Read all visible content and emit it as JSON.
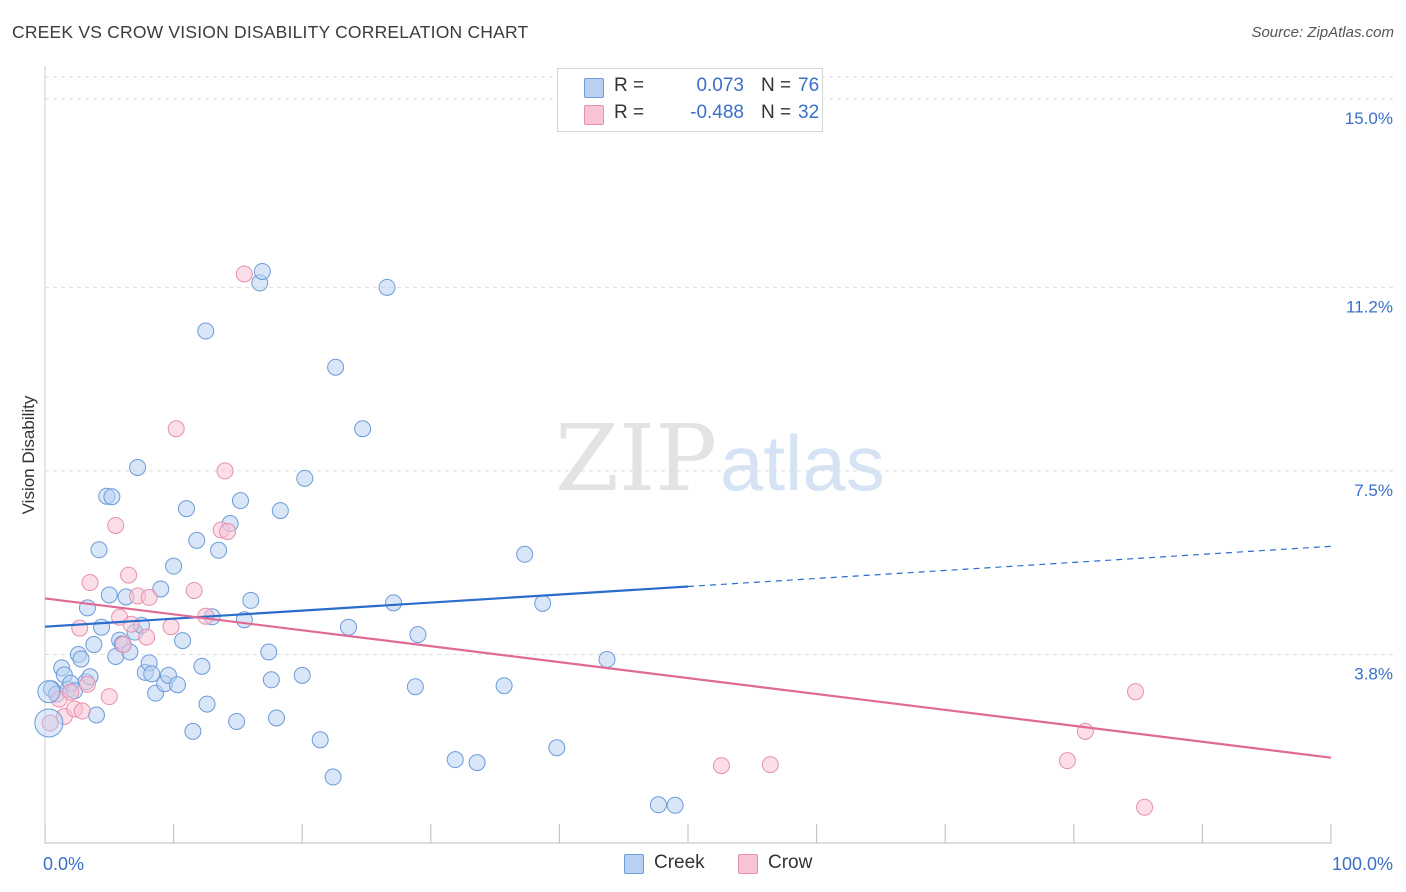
{
  "title": "CREEK VS CROW VISION DISABILITY CORRELATION CHART",
  "source": "Source: ZipAtlas.com",
  "watermark": {
    "zip": "ZIP",
    "atlas": "atlas"
  },
  "colors": {
    "creek_fill": "#b8d1f3",
    "creek_stroke": "#6c9bd8",
    "creek_line": "#2a6ccc",
    "crow_fill": "#f8c3d4",
    "crow_stroke": "#e890ad",
    "crow_line": "#e06a94",
    "axis_label": "#3a6fc9",
    "grid": "#dddddd"
  },
  "legend": {
    "rows": [
      {
        "series": "creek",
        "r_label": "R =",
        "r_value": "0.073",
        "n_label": "N =",
        "n_value": "76"
      },
      {
        "series": "crow",
        "r_label": "R =",
        "r_value": "-0.488",
        "n_label": "N =",
        "n_value": "32"
      }
    ]
  },
  "bottom_legend": {
    "creek": "Creek",
    "crow": "Crow"
  },
  "chart_data": {
    "type": "scatter",
    "title": "CREEK VS CROW VISION DISABILITY CORRELATION CHART",
    "xlabel": "",
    "ylabel": "Vision Disability",
    "xlim": [
      0,
      100
    ],
    "ylim": [
      0,
      15.44
    ],
    "x_tick_labels": {
      "min": "0.0%",
      "max": "100.0%"
    },
    "y_ticks": [
      {
        "value": 3.8,
        "label": "3.8%"
      },
      {
        "value": 7.5,
        "label": "7.5%"
      },
      {
        "value": 11.2,
        "label": "11.2%"
      },
      {
        "value": 15.0,
        "label": "15.0%"
      }
    ],
    "grid": true,
    "legend_position": "top-center",
    "series": [
      {
        "name": "Creek",
        "key": "creek",
        "trend": {
          "x0": 0,
          "y0": 4.36,
          "x1": 50,
          "y1": 5.17,
          "dashed_to_x": 100,
          "dashed_to_y": 5.98
        },
        "points": [
          [
            0.5,
            3.11
          ],
          [
            0.9,
            3.0
          ],
          [
            1.3,
            3.53
          ],
          [
            1.5,
            3.39
          ],
          [
            1.8,
            3.1
          ],
          [
            2.0,
            3.22
          ],
          [
            2.3,
            3.07
          ],
          [
            2.6,
            3.8
          ],
          [
            2.8,
            3.71
          ],
          [
            3.2,
            3.25
          ],
          [
            3.3,
            4.74
          ],
          [
            3.5,
            3.35
          ],
          [
            3.8,
            4.0
          ],
          [
            4.0,
            2.58
          ],
          [
            4.2,
            5.91
          ],
          [
            4.4,
            4.35
          ],
          [
            4.8,
            6.99
          ],
          [
            5.0,
            5.0
          ],
          [
            5.2,
            6.98
          ],
          [
            5.5,
            3.76
          ],
          [
            5.8,
            4.09
          ],
          [
            6.0,
            4.01
          ],
          [
            6.3,
            4.96
          ],
          [
            6.6,
            3.85
          ],
          [
            7.0,
            4.25
          ],
          [
            7.2,
            7.57
          ],
          [
            7.5,
            4.39
          ],
          [
            7.8,
            3.44
          ],
          [
            8.1,
            3.63
          ],
          [
            8.3,
            3.41
          ],
          [
            8.6,
            3.02
          ],
          [
            9.0,
            5.12
          ],
          [
            9.3,
            3.21
          ],
          [
            9.6,
            3.38
          ],
          [
            10.0,
            5.58
          ],
          [
            10.3,
            3.19
          ],
          [
            10.7,
            4.08
          ],
          [
            11.0,
            6.74
          ],
          [
            11.5,
            2.25
          ],
          [
            11.8,
            6.1
          ],
          [
            12.2,
            3.56
          ],
          [
            12.5,
            10.32
          ],
          [
            12.6,
            2.8
          ],
          [
            13.0,
            4.56
          ],
          [
            13.5,
            5.9
          ],
          [
            14.4,
            6.44
          ],
          [
            14.9,
            2.45
          ],
          [
            15.2,
            6.9
          ],
          [
            15.5,
            4.5
          ],
          [
            16.0,
            4.89
          ],
          [
            16.7,
            11.29
          ],
          [
            16.9,
            11.52
          ],
          [
            17.4,
            3.85
          ],
          [
            17.6,
            3.29
          ],
          [
            18.0,
            2.52
          ],
          [
            18.3,
            6.7
          ],
          [
            20.0,
            3.38
          ],
          [
            20.2,
            7.35
          ],
          [
            21.4,
            2.08
          ],
          [
            22.4,
            1.33
          ],
          [
            22.6,
            9.59
          ],
          [
            23.6,
            4.35
          ],
          [
            24.7,
            8.35
          ],
          [
            26.6,
            11.2
          ],
          [
            27.1,
            4.84
          ],
          [
            28.8,
            3.15
          ],
          [
            29.0,
            4.2
          ],
          [
            31.9,
            1.68
          ],
          [
            33.6,
            1.62
          ],
          [
            35.7,
            3.17
          ],
          [
            37.3,
            5.82
          ],
          [
            38.7,
            4.83
          ],
          [
            39.8,
            1.92
          ],
          [
            43.7,
            3.7
          ],
          [
            47.7,
            0.77
          ],
          [
            49.0,
            0.76
          ]
        ]
      },
      {
        "name": "Crow",
        "key": "crow",
        "trend": {
          "x0": 0,
          "y0": 4.93,
          "x1": 100,
          "y1": 1.72
        },
        "points": [
          [
            0.4,
            2.42
          ],
          [
            1.1,
            2.9
          ],
          [
            1.5,
            2.55
          ],
          [
            2.0,
            3.04
          ],
          [
            2.3,
            2.7
          ],
          [
            2.7,
            4.33
          ],
          [
            2.9,
            2.66
          ],
          [
            3.3,
            3.2
          ],
          [
            3.5,
            5.25
          ],
          [
            5.0,
            2.95
          ],
          [
            5.5,
            6.4
          ],
          [
            5.8,
            4.55
          ],
          [
            6.1,
            4.0
          ],
          [
            6.5,
            5.4
          ],
          [
            6.7,
            4.41
          ],
          [
            7.2,
            4.98
          ],
          [
            7.9,
            4.15
          ],
          [
            8.1,
            4.95
          ],
          [
            9.8,
            4.36
          ],
          [
            10.2,
            8.35
          ],
          [
            11.6,
            5.09
          ],
          [
            12.5,
            4.57
          ],
          [
            13.7,
            6.31
          ],
          [
            14.0,
            7.5
          ],
          [
            14.2,
            6.28
          ],
          [
            15.5,
            11.47
          ],
          [
            52.6,
            1.56
          ],
          [
            56.4,
            1.58
          ],
          [
            79.5,
            1.66
          ],
          [
            80.9,
            2.25
          ],
          [
            84.8,
            3.05
          ],
          [
            85.5,
            0.72
          ]
        ]
      }
    ]
  }
}
